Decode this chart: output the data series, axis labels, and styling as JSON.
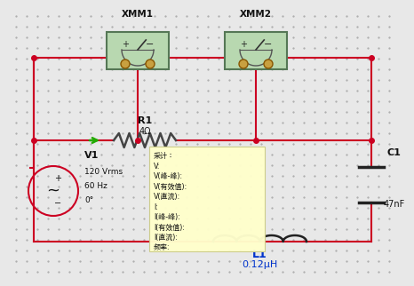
{
  "bg_color": "#e8e8e8",
  "dot_color": "#aaaaaa",
  "wire_color": "#cc0022",
  "wire_lw": 1.5,
  "ammeter1_label": "XMM1",
  "ammeter2_label": "XMM2",
  "R1_label": "R1",
  "R1_sub": "4Ω",
  "C1_label": "C1",
  "C1_sub": "47nF",
  "L1_label": "L1",
  "L1_sub": "0.12μH",
  "V1_label": "V1",
  "V1_sub1": "120 Vrms",
  "V1_sub2": "60 Hz",
  "V1_sub3": "0°",
  "arrow_color": "#22aa00",
  "label_color_blue": "#0033cc",
  "label_color_dark": "#111111",
  "ammeter_bg": "#b8d8b0",
  "ammeter_border": "#557755",
  "popup_bg": "#ffffcc",
  "popup_lines": [
    "采计：",
    "V:",
    "V(峰-峰):",
    "V(有效值):",
    "V(直流):",
    "I:",
    "I(峰-峰):",
    "I(有效值):",
    "I(直流):",
    "频率:"
  ]
}
